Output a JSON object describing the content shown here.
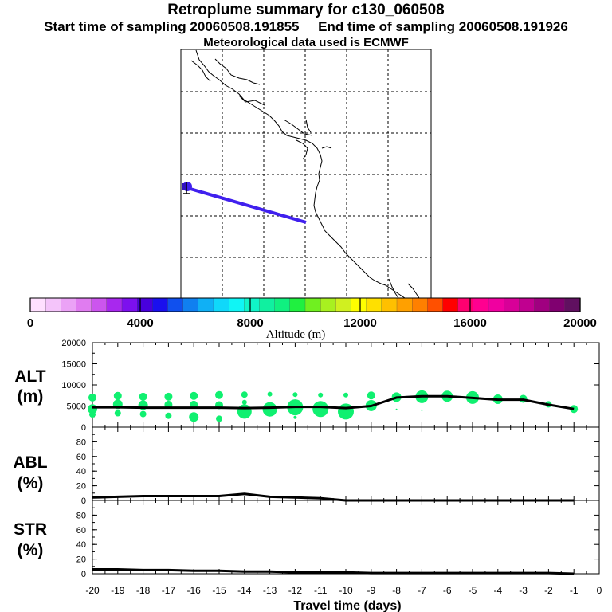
{
  "header": {
    "title": "Retroplume summary for c130_060508",
    "start_label": "Start time of sampling 20060508.191855",
    "end_label": "End time of sampling 20060508.191926",
    "met_label": "Meteorological data used is ECMWF"
  },
  "colorbar": {
    "label": "Altitude (m)",
    "ticks": [
      "0",
      "4000",
      "8000",
      "12000",
      "16000",
      "20000"
    ],
    "colors": [
      "#ffe0ff",
      "#f4c4fa",
      "#eba2f6",
      "#e07cf0",
      "#cc55ee",
      "#a828ee",
      "#7d10ee",
      "#4800dc",
      "#1a10ee",
      "#1050ee",
      "#1080f0",
      "#10b0f5",
      "#10d8fa",
      "#10f5f5",
      "#10f5c8",
      "#10f0a0",
      "#10f080",
      "#20f040",
      "#70f020",
      "#a8f020",
      "#d0f020",
      "#ffff00",
      "#ffe000",
      "#ffc000",
      "#ffa000",
      "#ff8000",
      "#ff5000",
      "#ff0000",
      "#ff0070",
      "#ff0090",
      "#f000a0",
      "#d80098",
      "#c00090",
      "#a00080",
      "#800070",
      "#601060"
    ]
  },
  "map": {
    "track": {
      "color": "#4020ee"
    }
  },
  "chart_data": [
    {
      "type": "line",
      "name": "ALT",
      "label_line1": "ALT",
      "label_line2": "(m)",
      "ylim": [
        0,
        20000
      ],
      "yticks": [
        "0",
        "5000",
        "10000",
        "15000",
        "20000"
      ],
      "x": [
        -20,
        -19,
        -18,
        -17,
        -16,
        -15,
        -14,
        -13,
        -12,
        -11,
        -10,
        -9,
        -8,
        -7,
        -6,
        -5,
        -4,
        -3,
        -2,
        -1
      ],
      "values": [
        4700,
        4700,
        4600,
        4600,
        4600,
        4600,
        4500,
        4600,
        4800,
        4800,
        4500,
        5000,
        7000,
        7300,
        7300,
        6900,
        6500,
        6500,
        5300,
        4300
      ],
      "clusters": [
        {
          "x": -20,
          "y": 4300,
          "r": 6
        },
        {
          "x": -20,
          "y": 7000,
          "r": 5
        },
        {
          "x": -20,
          "y": 3000,
          "r": 4
        },
        {
          "x": -19,
          "y": 5400,
          "r": 6
        },
        {
          "x": -19,
          "y": 7400,
          "r": 5
        },
        {
          "x": -19,
          "y": 3300,
          "r": 4
        },
        {
          "x": -18,
          "y": 5200,
          "r": 6
        },
        {
          "x": -18,
          "y": 7200,
          "r": 5
        },
        {
          "x": -18,
          "y": 3100,
          "r": 4
        },
        {
          "x": -17,
          "y": 5300,
          "r": 5
        },
        {
          "x": -17,
          "y": 7200,
          "r": 5
        },
        {
          "x": -17,
          "y": 2700,
          "r": 4
        },
        {
          "x": -16,
          "y": 5300,
          "r": 5
        },
        {
          "x": -16,
          "y": 7400,
          "r": 5
        },
        {
          "x": -16,
          "y": 2400,
          "r": 6
        },
        {
          "x": -15,
          "y": 5200,
          "r": 5
        },
        {
          "x": -15,
          "y": 7600,
          "r": 5
        },
        {
          "x": -15,
          "y": 2000,
          "r": 4
        },
        {
          "x": -14,
          "y": 3700,
          "r": 9
        },
        {
          "x": -14,
          "y": 7700,
          "r": 4
        },
        {
          "x": -14,
          "y": 5900,
          "r": 3
        },
        {
          "x": -13,
          "y": 4200,
          "r": 9
        },
        {
          "x": -13,
          "y": 7800,
          "r": 3
        },
        {
          "x": -12,
          "y": 4700,
          "r": 10
        },
        {
          "x": -12,
          "y": 7700,
          "r": 3
        },
        {
          "x": -12,
          "y": 2300,
          "r": 2
        },
        {
          "x": -11,
          "y": 4300,
          "r": 10
        },
        {
          "x": -11,
          "y": 7600,
          "r": 3
        },
        {
          "x": -10,
          "y": 3700,
          "r": 10
        },
        {
          "x": -10,
          "y": 7600,
          "r": 3
        },
        {
          "x": -9,
          "y": 5100,
          "r": 7
        },
        {
          "x": -9,
          "y": 7500,
          "r": 5
        },
        {
          "x": -8,
          "y": 7100,
          "r": 6
        },
        {
          "x": -8,
          "y": 4200,
          "r": 1
        },
        {
          "x": -7,
          "y": 7200,
          "r": 8
        },
        {
          "x": -7,
          "y": 4000,
          "r": 1
        },
        {
          "x": -6,
          "y": 7300,
          "r": 7
        },
        {
          "x": -5,
          "y": 7000,
          "r": 8
        },
        {
          "x": -4,
          "y": 6600,
          "r": 6
        },
        {
          "x": -3,
          "y": 6700,
          "r": 5
        },
        {
          "x": -2,
          "y": 5400,
          "r": 4
        },
        {
          "x": -1,
          "y": 4300,
          "r": 5
        }
      ]
    },
    {
      "type": "line",
      "name": "ABL",
      "label_line1": "ABL",
      "label_line2": "(%)",
      "ylim": [
        0,
        100
      ],
      "yticks": [
        "0",
        "20",
        "40",
        "60",
        "80"
      ],
      "x": [
        -20,
        -19,
        -18,
        -17,
        -16,
        -15,
        -14,
        -13,
        -12,
        -11,
        -10,
        -9,
        -8,
        -7,
        -6,
        -5,
        -4,
        -3,
        -2,
        -1
      ],
      "values": [
        4,
        5,
        6,
        6,
        6,
        6,
        9,
        5,
        4,
        3,
        0,
        0,
        0,
        0,
        0,
        0,
        0,
        0,
        0,
        0
      ]
    },
    {
      "type": "line",
      "name": "STR",
      "label_line1": "STR",
      "label_line2": "(%)",
      "ylim": [
        0,
        100
      ],
      "yticks": [
        "0",
        "20",
        "40",
        "60",
        "80"
      ],
      "x": [
        -20,
        -19,
        -18,
        -17,
        -16,
        -15,
        -14,
        -13,
        -12,
        -11,
        -10,
        -9,
        -8,
        -7,
        -6,
        -5,
        -4,
        -3,
        -2,
        -1
      ],
      "values": [
        6,
        6,
        5,
        5,
        4,
        4,
        3,
        3,
        2,
        2,
        2,
        1,
        1,
        1,
        1,
        1,
        1,
        1,
        1,
        0
      ],
      "xlabel": "Travel time (days)",
      "xticks": [
        "-20",
        "-19",
        "-18",
        "-17",
        "-16",
        "-15",
        "-14",
        "-13",
        "-12",
        "-11",
        "-10",
        "-9",
        "-8",
        "-7",
        "-6",
        "-5",
        "-4",
        "-3",
        "-2",
        "-1",
        "0"
      ]
    }
  ]
}
